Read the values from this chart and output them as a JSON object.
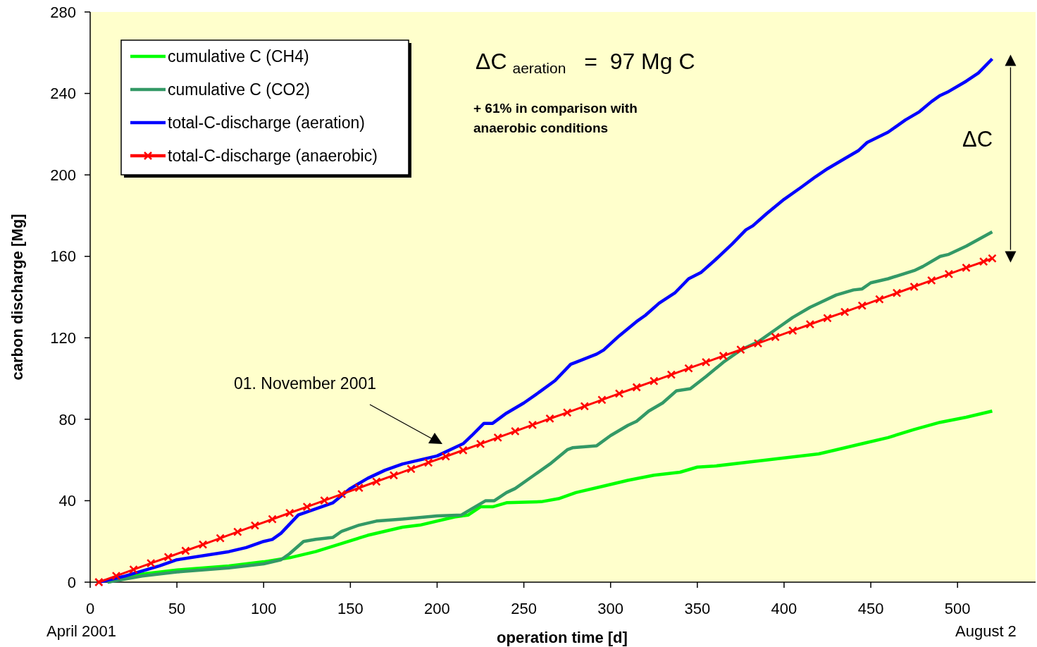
{
  "chart_data": {
    "type": "line",
    "xlabel": "operation time [d]",
    "ylabel": "carbon discharge [Mg]",
    "xlim": [
      0,
      545
    ],
    "xticks": [
      0,
      50,
      100,
      150,
      200,
      250,
      300,
      350,
      400,
      450,
      500
    ],
    "ylim": [
      0,
      280
    ],
    "yticks": [
      0,
      40,
      80,
      120,
      160,
      200,
      240,
      280
    ],
    "grid": false,
    "legend": "top left",
    "annotations": [
      "01. November 2001",
      "ΔC$_{aeration}$ =  97 Mg C",
      "+ 61% in comparison with\nanaerobic conditions",
      "ΔC",
      "April 2001",
      "August 2"
    ],
    "series": [
      {
        "name": "cumulative C (CH4)",
        "color": "#00ff00",
        "marker": "none",
        "x": [
          10,
          30,
          50,
          80,
          100,
          115,
          130,
          145,
          160,
          180,
          190,
          210,
          218,
          225,
          232,
          240,
          260,
          270,
          280,
          295,
          310,
          325,
          340,
          350,
          360,
          380,
          400,
          420,
          430,
          445,
          460,
          475,
          490,
          505,
          520
        ],
        "values": [
          0,
          4,
          6,
          8,
          10,
          12,
          15,
          19,
          23,
          27,
          28,
          32,
          33,
          37,
          37,
          39,
          39.5,
          41,
          44,
          47,
          50,
          52.5,
          54,
          56.5,
          57,
          59,
          61,
          63,
          65,
          68,
          71,
          75,
          78.5,
          81,
          84
        ]
      },
      {
        "name": "cumulative C (CO2)",
        "color": "#339966",
        "marker": "none",
        "x": [
          10,
          30,
          50,
          80,
          100,
          110,
          115,
          123,
          130,
          140,
          145,
          155,
          165,
          180,
          200,
          214,
          220,
          228,
          233,
          240,
          245,
          255,
          265,
          275,
          278,
          292,
          300,
          310,
          315,
          322,
          330,
          338,
          346,
          355,
          365,
          375,
          385,
          395,
          405,
          415,
          420,
          430,
          440,
          445,
          450,
          460,
          475,
          480,
          490,
          495,
          505,
          520
        ],
        "values": [
          0,
          3,
          5,
          7,
          9,
          11,
          14,
          20,
          21,
          22,
          25,
          28,
          30,
          31,
          32.5,
          33,
          36,
          40,
          40,
          44,
          46,
          52,
          58,
          65,
          66,
          67,
          72,
          77,
          79,
          84,
          88,
          94,
          95,
          101,
          108,
          114,
          118,
          124,
          130,
          135,
          137,
          141,
          143.5,
          144,
          147,
          149,
          153,
          155,
          160,
          161,
          165,
          172
        ]
      },
      {
        "name": "total-C-discharge (aeration)",
        "color": "#0000ff",
        "marker": "none",
        "x": [
          5,
          20,
          40,
          50,
          80,
          90,
          100,
          105,
          110,
          120,
          140,
          150,
          160,
          170,
          180,
          190,
          200,
          210,
          215,
          220,
          227,
          232,
          240,
          250,
          260,
          268,
          277,
          283,
          292,
          296,
          305,
          315,
          320,
          328,
          337,
          345,
          352,
          360,
          370,
          378,
          382,
          390,
          400,
          410,
          418,
          425,
          435,
          443,
          448,
          460,
          470,
          478,
          485,
          490,
          495,
          505,
          512,
          520
        ],
        "values": [
          0,
          3,
          8,
          11,
          15,
          17,
          20,
          21,
          24,
          33,
          39,
          46,
          51,
          55,
          58,
          60,
          62,
          66,
          68,
          72,
          78,
          78,
          83,
          88,
          94,
          99,
          107,
          109,
          112,
          114,
          121,
          128,
          131,
          137,
          142,
          149,
          152,
          158,
          166,
          173,
          175,
          181,
          188,
          194,
          199,
          203,
          208,
          212,
          216,
          221,
          227,
          231,
          236,
          239,
          241,
          246,
          250,
          257
        ]
      },
      {
        "name": "total-C-discharge (anaerobic)",
        "color": "#ff0000",
        "marker": "cross",
        "x": [
          5,
          15,
          25,
          35,
          45,
          55,
          65,
          75,
          85,
          95,
          105,
          115,
          125,
          135,
          145,
          155,
          165,
          175,
          185,
          195,
          205,
          215,
          225,
          235,
          245,
          255,
          265,
          275,
          285,
          295,
          305,
          315,
          325,
          335,
          345,
          355,
          365,
          375,
          385,
          395,
          405,
          415,
          425,
          435,
          445,
          455,
          465,
          475,
          485,
          495,
          505,
          515,
          520
        ],
        "values": [
          0,
          3.1,
          6.2,
          9.3,
          12.3,
          15.4,
          18.5,
          21.6,
          24.7,
          27.8,
          30.9,
          34.0,
          37.0,
          40.1,
          43.2,
          46.3,
          49.4,
          52.5,
          55.6,
          58.7,
          61.7,
          64.8,
          67.9,
          71.0,
          74.1,
          77.2,
          80.3,
          83.3,
          86.4,
          89.5,
          92.6,
          95.7,
          98.8,
          101.9,
          105.0,
          108.0,
          111.1,
          114.2,
          117.3,
          120.4,
          123.5,
          126.6,
          129.7,
          132.7,
          135.8,
          138.9,
          142.0,
          145.1,
          148.2,
          151.3,
          154.4,
          157.4,
          159
        ]
      }
    ]
  }
}
